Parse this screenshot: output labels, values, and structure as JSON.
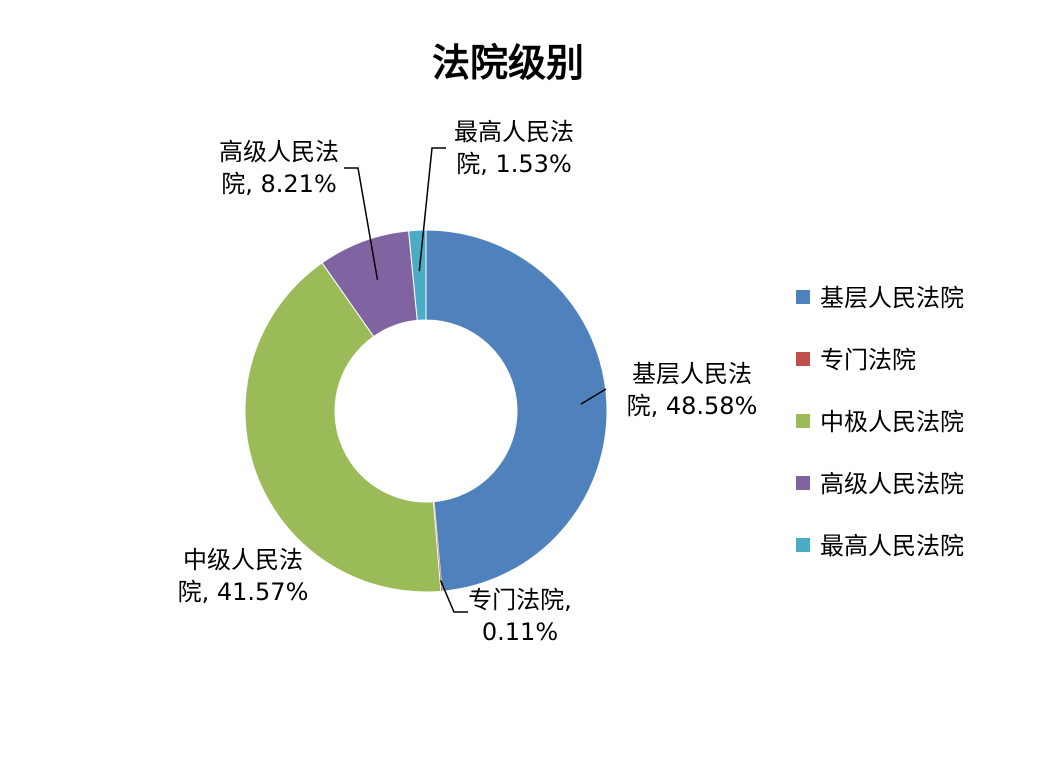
{
  "chart_data": {
    "type": "pie",
    "title": "法院级别",
    "legend_position": "right",
    "categories": [
      "基层人民法院",
      "专门法院",
      "中极人民法院",
      "高级人民法院",
      "最高人民法院"
    ],
    "values": [
      48.58,
      0.11,
      41.57,
      8.21,
      1.53
    ],
    "colors": [
      "#4F81BD",
      "#C0504D",
      "#9BBB59",
      "#8064A2",
      "#4BACC6"
    ],
    "data_labels": [
      {
        "line1": "基层人民法",
        "line2": "院, 48.58%"
      },
      {
        "line1": "专门法院,",
        "line2": "0.11%"
      },
      {
        "line1": "中级人民法",
        "line2": "院, 41.57%"
      },
      {
        "line1": "高级人民法",
        "line2": "院, 8.21%"
      },
      {
        "line1": "最高人民法",
        "line2": "院, 1.53%"
      }
    ]
  }
}
